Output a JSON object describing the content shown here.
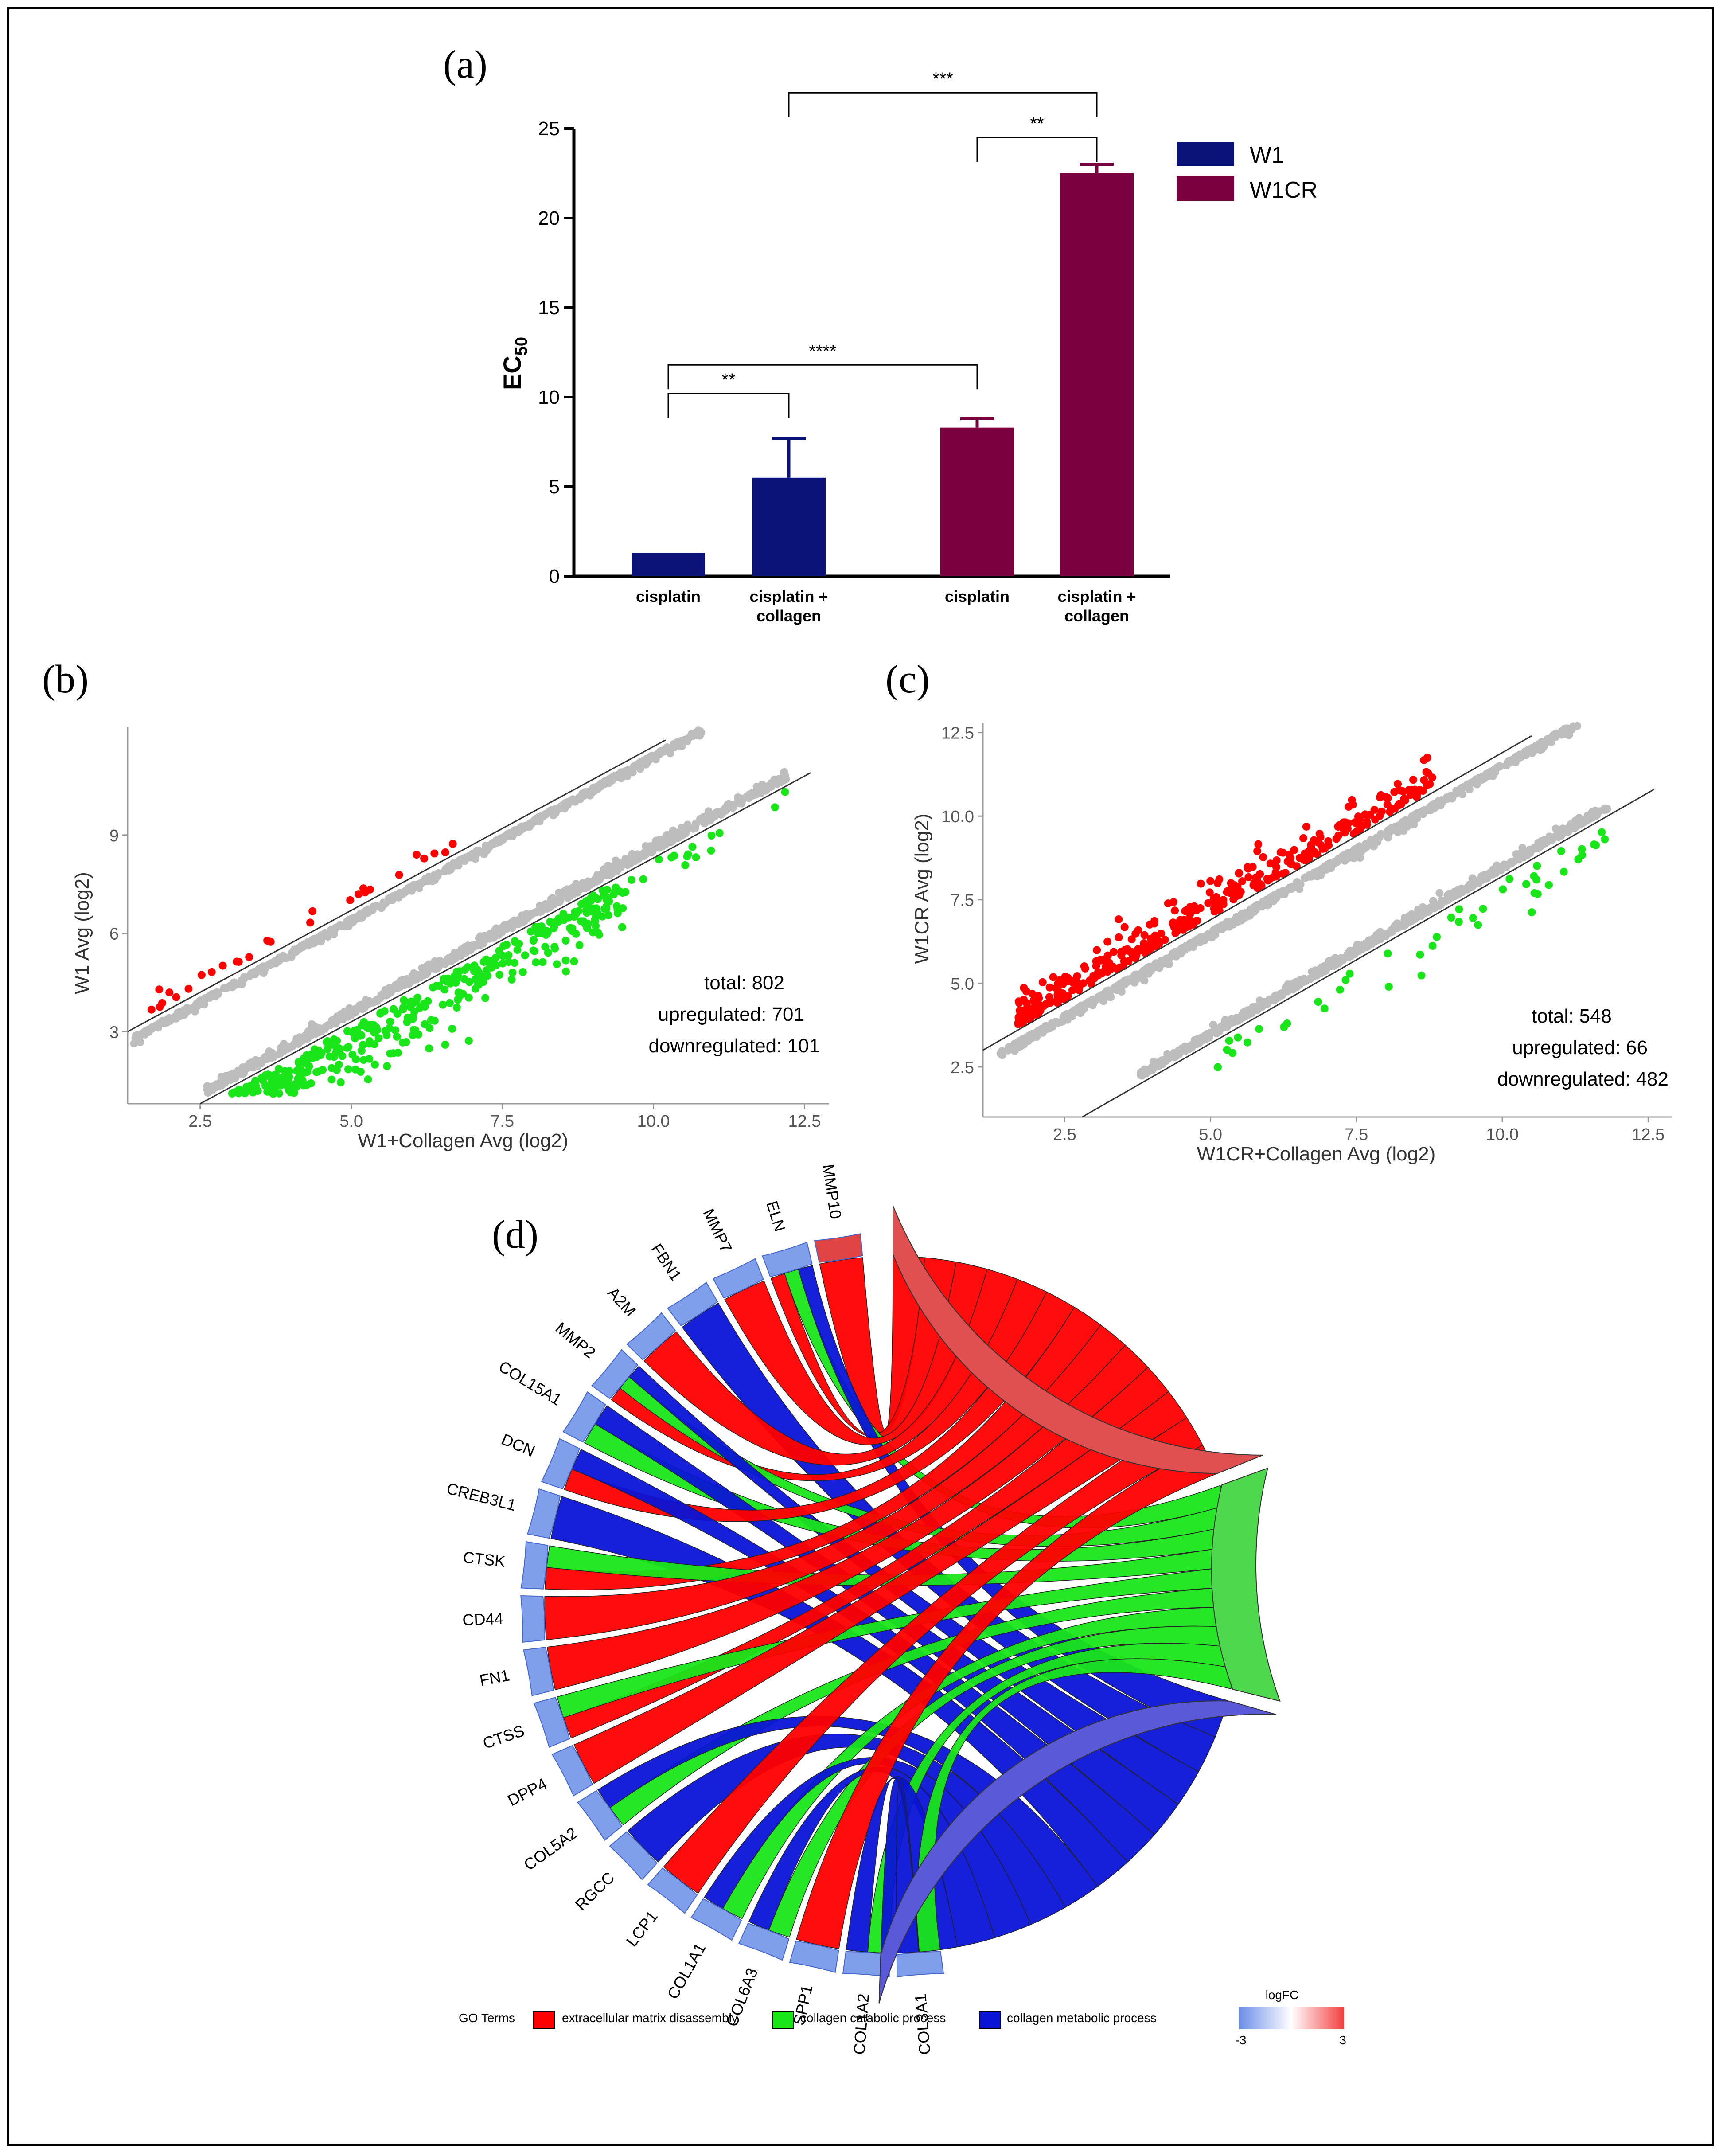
{
  "panel_labels": {
    "a": "(a)",
    "b": "(b)",
    "c": "(c)",
    "d": "(d)"
  },
  "colors": {
    "w1": "#0c1378",
    "w1cr": "#7a0040",
    "red": "#ff0000",
    "green": "#19e619",
    "blue": "#0a14d6",
    "grey": "#bdbdbd"
  },
  "chart_data": [
    {
      "id": "a",
      "type": "bar",
      "ylabel": "EC",
      "ylabel_sub": "50",
      "ylim": [
        0,
        25
      ],
      "yticks": [
        0,
        5,
        10,
        15,
        20,
        25
      ],
      "categories": [
        "cisplatin",
        "cisplatin + collagen",
        "cisplatin",
        "cisplatin + collagen"
      ],
      "category_lines": [
        [
          "cisplatin"
        ],
        [
          "cisplatin +",
          "collagen"
        ],
        [
          "cisplatin"
        ],
        [
          "cisplatin +",
          "collagen"
        ]
      ],
      "series": [
        {
          "name": "W1",
          "values": [
            1.3,
            5.5,
            null,
            null
          ],
          "errors": [
            0,
            2.2,
            null,
            null
          ]
        },
        {
          "name": "W1CR",
          "values": [
            null,
            null,
            8.3,
            22.5
          ],
          "errors": [
            null,
            null,
            0.5,
            0.5
          ]
        }
      ],
      "significance": [
        {
          "from": 0,
          "to": 1,
          "label": "**",
          "level": 10.2
        },
        {
          "from": 0,
          "to": 2,
          "label": "****",
          "level": 11.8
        },
        {
          "from": 2,
          "to": 3,
          "label": "**",
          "level": 24.5
        },
        {
          "from": 1,
          "to": 3,
          "label": "***",
          "level": 27.0
        }
      ]
    },
    {
      "id": "b",
      "type": "scatter",
      "xlabel": "W1+Collagen Avg (log2)",
      "ylabel": "W1 Avg (log2)",
      "xlim": [
        1.3,
        12.9
      ],
      "ylim": [
        0.8,
        12.3
      ],
      "xticks": [
        2.5,
        5.0,
        7.5,
        10.0,
        12.5
      ],
      "xtick_labels": [
        "2.5",
        "5.0",
        "7.5",
        "10.0",
        "12.5"
      ],
      "yticks": [
        3,
        6,
        9
      ],
      "ytick_labels": [
        "3",
        "6",
        "9"
      ],
      "diagonal_offsets": [
        1.7,
        -1.7
      ],
      "annotation": [
        "total: 802",
        "upregulated: 701",
        "downregulated: 101"
      ],
      "summary": {
        "total": 802,
        "upregulated": 701,
        "downregulated": 101
      }
    },
    {
      "id": "c",
      "type": "scatter",
      "xlabel": "W1CR+Collagen Avg (log2)",
      "ylabel": "W1CR Avg (log2)",
      "xlim": [
        1.1,
        12.9
      ],
      "ylim": [
        1.0,
        12.8
      ],
      "xticks": [
        2.5,
        5.0,
        7.5,
        10.0,
        12.5
      ],
      "xtick_labels": [
        "2.5",
        "5.0",
        "7.5",
        "10.0",
        "12.5"
      ],
      "yticks": [
        2.5,
        5.0,
        7.5,
        10.0,
        12.5
      ],
      "ytick_labels": [
        "2.5",
        "5.0",
        "7.5",
        "10.0",
        "12.5"
      ],
      "diagonal_offsets": [
        1.9,
        -1.8
      ],
      "annotation": [
        "total: 548",
        "upregulated: 66",
        "downregulated: 482"
      ],
      "summary": {
        "total": 548,
        "upregulated": 66,
        "downregulated": 482
      }
    },
    {
      "id": "d",
      "type": "chord",
      "genes": [
        "MMP10",
        "ELN",
        "MMP7",
        "FBN1",
        "A2M",
        "MMP2",
        "COL15A1",
        "DCN",
        "CREB3L1",
        "CTSK",
        "CD44",
        "FN1",
        "CTSS",
        "DPP4",
        "COL5A2",
        "RGCC",
        "LCP1",
        "COL1A1",
        "COL6A3",
        "SPP1",
        "COL1A2",
        "COL3A1"
      ],
      "terms": [
        "extracellular matrix disassembly",
        "collagen catabolic process",
        "collagen metabolic process"
      ],
      "legend_title": "GO Terms",
      "logfc_title": "logFC",
      "logfc_min": "-3",
      "logfc_max": "3"
    }
  ]
}
